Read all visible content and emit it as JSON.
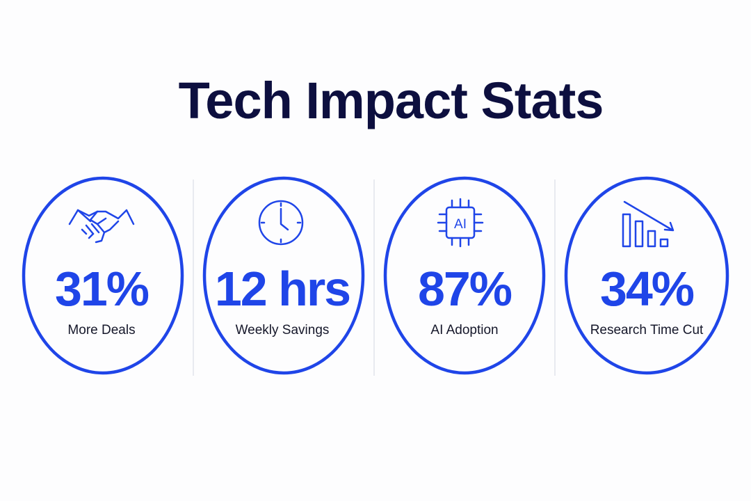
{
  "header": {
    "title": "Tech Impact Stats"
  },
  "stats": [
    {
      "value": "31%",
      "label": "More Deals"
    },
    {
      "value": "12 hrs",
      "label": "Weekly Savings"
    },
    {
      "value": "87%",
      "label": "AI Adoption",
      "icon_label": "AI"
    },
    {
      "value": "34%",
      "label": "Research Time Cut"
    }
  ]
}
